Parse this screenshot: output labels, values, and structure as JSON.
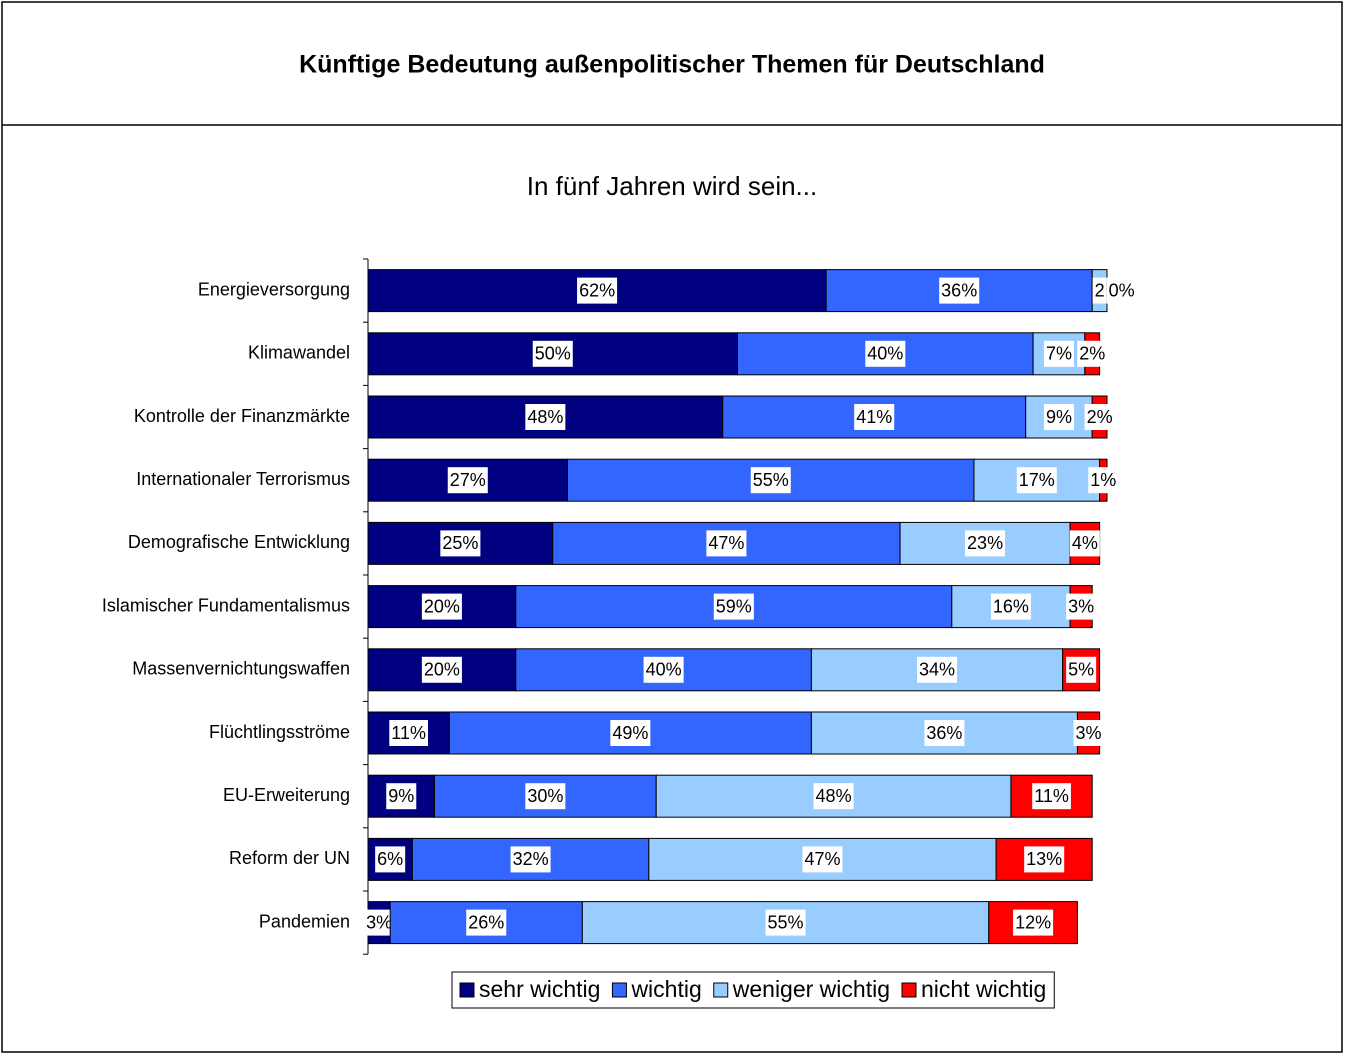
{
  "chart_data": {
    "type": "stacked_bar_horizontal",
    "title": "Künftige Bedeutung außenpolitischer Themen für Deutschland",
    "subtitle": "In fünf Jahren wird sein...",
    "categories": [
      "Energieversorgung",
      "Klimawandel",
      "Kontrolle der Finanzmärkte",
      "Internationaler Terrorismus",
      "Demografische Entwicklung",
      "Islamischer Fundamentalismus",
      "Massenvernichtungswaffen",
      "Flüchtlingsströme",
      "EU-Erweiterung",
      "Reform der UN",
      "Pandemien"
    ],
    "xlim": [
      0,
      100
    ],
    "legend": "bottom",
    "series": [
      {
        "name": "sehr wichtig",
        "color": "#000080",
        "values": [
          62,
          50,
          48,
          27,
          25,
          20,
          20,
          11,
          9,
          6,
          3
        ],
        "value_labels": [
          "62%",
          "50%",
          "48%",
          "27%",
          "25%",
          "20%",
          "20%",
          "11%",
          "9%",
          "6%",
          "3%"
        ]
      },
      {
        "name": "wichtig",
        "color": "#3366ff",
        "values": [
          36,
          40,
          41,
          55,
          47,
          59,
          40,
          49,
          30,
          32,
          26
        ],
        "value_labels": [
          "36%",
          "40%",
          "41%",
          "55%",
          "47%",
          "59%",
          "40%",
          "49%",
          "30%",
          "32%",
          "26%"
        ]
      },
      {
        "name": "weniger wichtig",
        "color": "#99ccff",
        "values": [
          2,
          7,
          9,
          17,
          23,
          16,
          34,
          36,
          48,
          47,
          55
        ],
        "value_labels": [
          "2",
          "7%",
          "9%",
          "17%",
          "23%",
          "16%",
          "34%",
          "36%",
          "48%",
          "47%",
          "55%"
        ]
      },
      {
        "name": "nicht wichtig",
        "color": "#ff0000",
        "values": [
          0,
          2,
          2,
          1,
          4,
          3,
          5,
          3,
          11,
          13,
          12
        ],
        "value_labels": [
          "0%",
          "2%",
          "2%",
          "1%",
          "4%",
          "3%",
          "5%",
          "3%",
          "11%",
          "13%",
          "12%"
        ]
      }
    ]
  }
}
